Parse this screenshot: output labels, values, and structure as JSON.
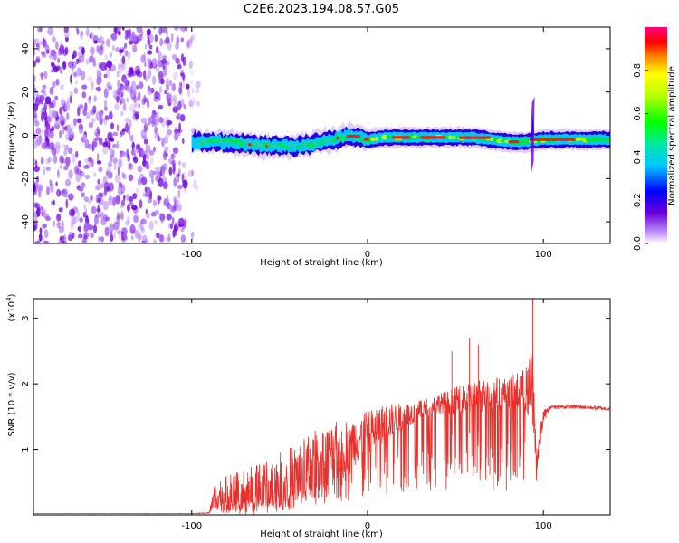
{
  "title": "C2E6.2023.194.08.57.G05",
  "chart_data": [
    {
      "type": "heatmap",
      "xlabel": "Height of straight line (km)",
      "ylabel": "Frequency (Hz)",
      "xlim": [
        -190,
        138
      ],
      "ylim": [
        -50,
        50
      ],
      "xticks": [
        -100,
        0,
        100
      ],
      "xtick_labels": [
        "-100",
        "0",
        "100"
      ],
      "yticks": [
        -40,
        -20,
        0,
        20,
        40
      ],
      "ytick_labels": [
        "-40",
        "-20",
        "0",
        "20",
        "40"
      ],
      "colorbar": {
        "label": "Normalized spectral amplitude",
        "range": [
          0,
          1
        ],
        "ticks": [
          0.0,
          0.2,
          0.4,
          0.6,
          0.8
        ],
        "tick_labels": [
          "0.0",
          "0.2",
          "0.4",
          "0.6",
          "0.8"
        ],
        "colormap": "rainbow"
      },
      "features": {
        "noise_region_x": [
          -190,
          -96
        ],
        "signal_track_x": [
          -100,
          138
        ],
        "signal_track_freq": [
          [
            -100,
            -3
          ],
          [
            -90,
            -3
          ],
          [
            -80,
            -3
          ],
          [
            -70,
            -4
          ],
          [
            -60,
            -5
          ],
          [
            -50,
            -5
          ],
          [
            -40,
            -5
          ],
          [
            -30,
            -4
          ],
          [
            -20,
            -2
          ],
          [
            -10,
            0
          ],
          [
            0,
            -2
          ],
          [
            10,
            -1
          ],
          [
            20,
            -1
          ],
          [
            40,
            -1
          ],
          [
            60,
            -1
          ],
          [
            80,
            -3
          ],
          [
            90,
            -3
          ],
          [
            100,
            -2
          ],
          [
            110,
            -2
          ],
          [
            120,
            -2
          ],
          [
            138,
            -2
          ]
        ],
        "spike_x": 94
      }
    },
    {
      "type": "line",
      "xlabel": "Height of straight line (km)",
      "ylabel": "SNR (10 * v/v)",
      "y_scale_label": "(x10",
      "y_scale_exponent": "4",
      "xlim": [
        -190,
        138
      ],
      "ylim": [
        0,
        3.3
      ],
      "xticks": [
        -100,
        0,
        100
      ],
      "xtick_labels": [
        "-100",
        "0",
        "100"
      ],
      "yticks": [
        1,
        2,
        3
      ],
      "ytick_labels": [
        "1",
        "2",
        "3"
      ],
      "series": [
        {
          "color": "#e8302c",
          "x": [
            -190,
            -150,
            -100,
            -90,
            -87,
            -80,
            -70,
            -60,
            -50,
            -40,
            -30,
            -20,
            -10,
            0,
            10,
            20,
            30,
            40,
            50,
            60,
            70,
            80,
            90,
            94,
            96,
            100,
            104,
            110,
            120,
            138
          ],
          "y": [
            0.02,
            0.02,
            0.02,
            0.03,
            0.3,
            0.3,
            0.35,
            0.4,
            0.5,
            0.6,
            0.75,
            0.95,
            1.1,
            1.25,
            1.4,
            1.5,
            1.6,
            1.7,
            1.75,
            1.8,
            1.85,
            1.85,
            1.9,
            1.95,
            0.8,
            1.5,
            1.65,
            1.65,
            1.65,
            1.62
          ],
          "noise": [
            0.002,
            0.002,
            0.002,
            0.01,
            0.2,
            0.3,
            0.35,
            0.4,
            0.45,
            0.5,
            0.55,
            0.45,
            0.4,
            0.35,
            0.3,
            0.2,
            0.15,
            0.15,
            0.2,
            0.25,
            0.25,
            0.25,
            0.35,
            0.6,
            0.3,
            0.1,
            0.03,
            0.03,
            0.03,
            0.03
          ]
        }
      ],
      "peaks": [
        {
          "x": 58,
          "y": 2.7
        },
        {
          "x": 63,
          "y": 2.6
        },
        {
          "x": 48,
          "y": 2.5
        },
        {
          "x": 94,
          "y": 3.3
        }
      ]
    }
  ]
}
